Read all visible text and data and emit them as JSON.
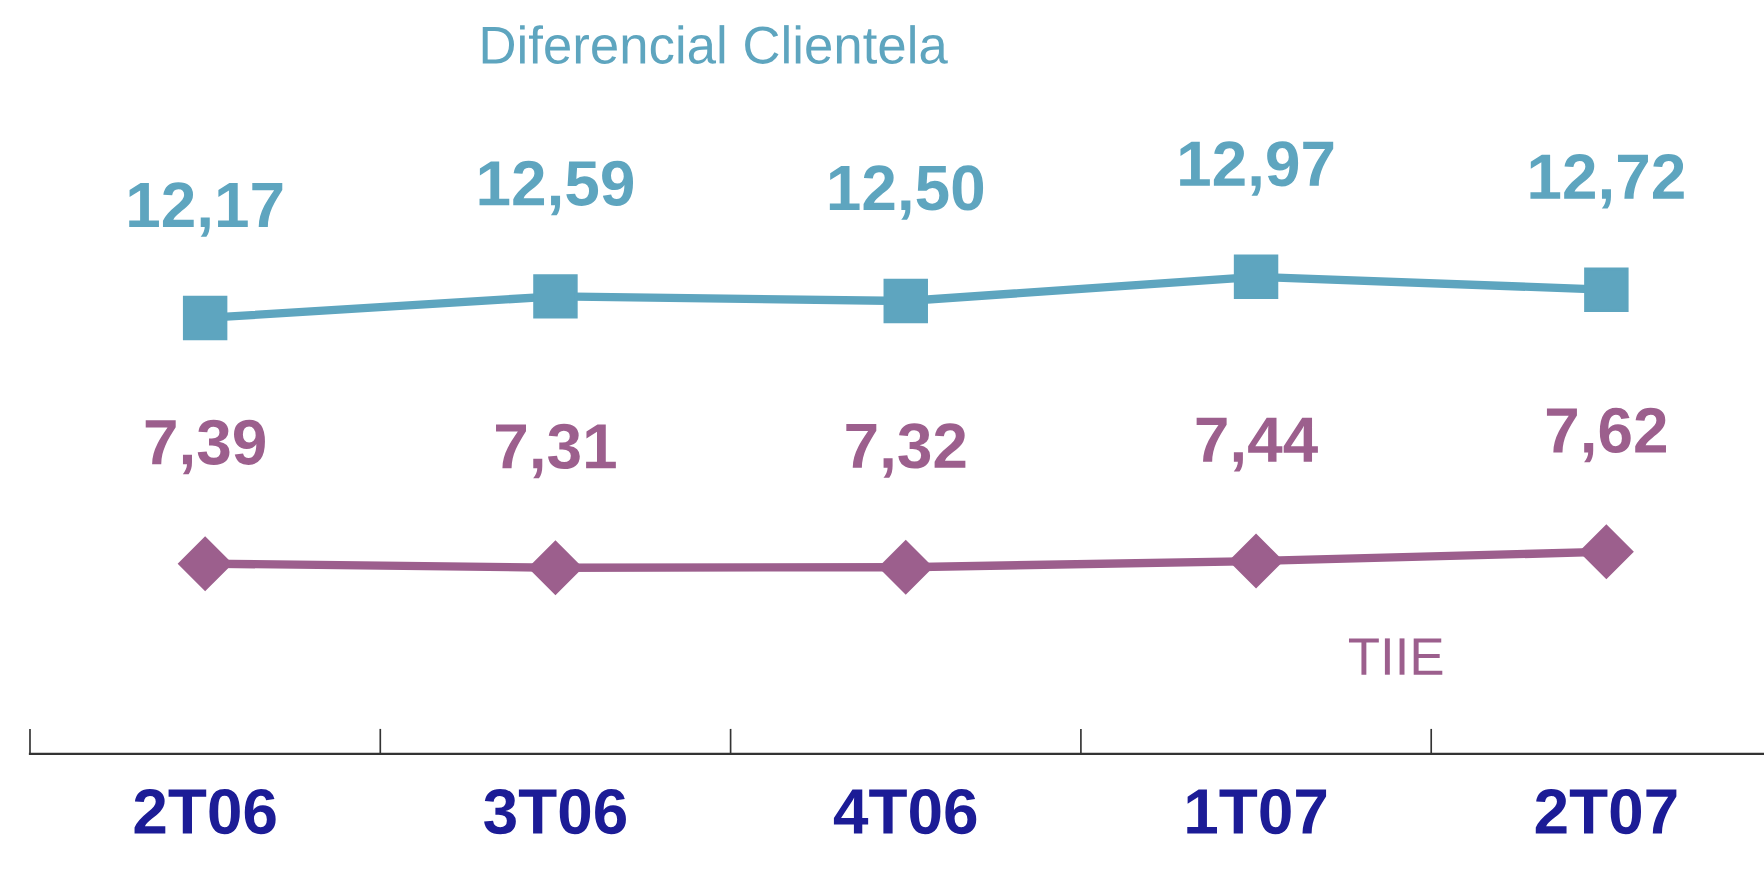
{
  "chart_data": {
    "type": "line",
    "categories": [
      "2T06",
      "3T06",
      "4T06",
      "1T07",
      "2T07"
    ],
    "series": [
      {
        "name": "Diferencial Clientela",
        "color": "#5ea5bf",
        "marker": "square",
        "values": [
          12.17,
          12.59,
          12.5,
          12.97,
          12.72
        ],
        "value_labels": [
          "12,17",
          "12,59",
          "12,50",
          "12,97",
          "12,72"
        ]
      },
      {
        "name": "TIIE",
        "color": "#9c5f8d",
        "marker": "diamond",
        "values": [
          7.39,
          7.31,
          7.32,
          7.44,
          7.62
        ],
        "value_labels": [
          "7,39",
          "7,31",
          "7,32",
          "7,44",
          "7,62"
        ]
      }
    ],
    "grid": false,
    "legend": false,
    "line_style": "solid",
    "tick_labels": "x"
  }
}
